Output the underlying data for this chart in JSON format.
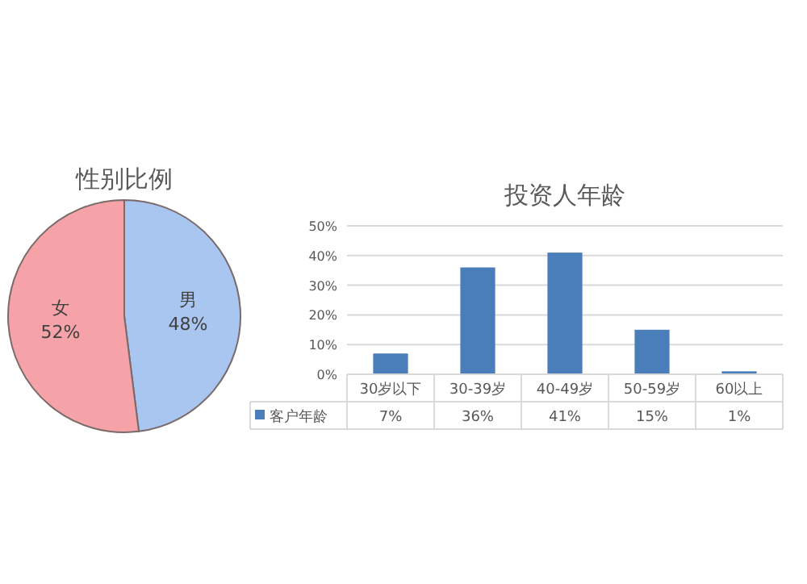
{
  "chart_data": [
    {
      "type": "pie",
      "title": "性别比例",
      "categories": [
        "男",
        "女"
      ],
      "values": [
        48,
        52
      ],
      "colors": [
        "#a9c6f0",
        "#f5a3a8"
      ],
      "value_labels": [
        "48%",
        "52%"
      ]
    },
    {
      "type": "bar",
      "title": "投资人年龄",
      "categories": [
        "30岁以下",
        "30-39岁",
        "40-49岁",
        "50-59岁",
        "60以上"
      ],
      "series": [
        {
          "name": "客户年龄",
          "color": "#4a7ebb",
          "values": [
            7,
            36,
            41,
            15,
            1
          ],
          "value_labels": [
            "7%",
            "36%",
            "41%",
            "15%",
            "1%"
          ]
        }
      ],
      "ylim": [
        0,
        50
      ],
      "yticks": [
        {
          "value": 0,
          "label": "0%"
        },
        {
          "value": 10,
          "label": "10%"
        },
        {
          "value": 20,
          "label": "20%"
        },
        {
          "value": 30,
          "label": "30%"
        },
        {
          "value": 40,
          "label": "40%"
        },
        {
          "value": 50,
          "label": "50%"
        }
      ],
      "grid": "y",
      "legend": "bottom"
    }
  ]
}
